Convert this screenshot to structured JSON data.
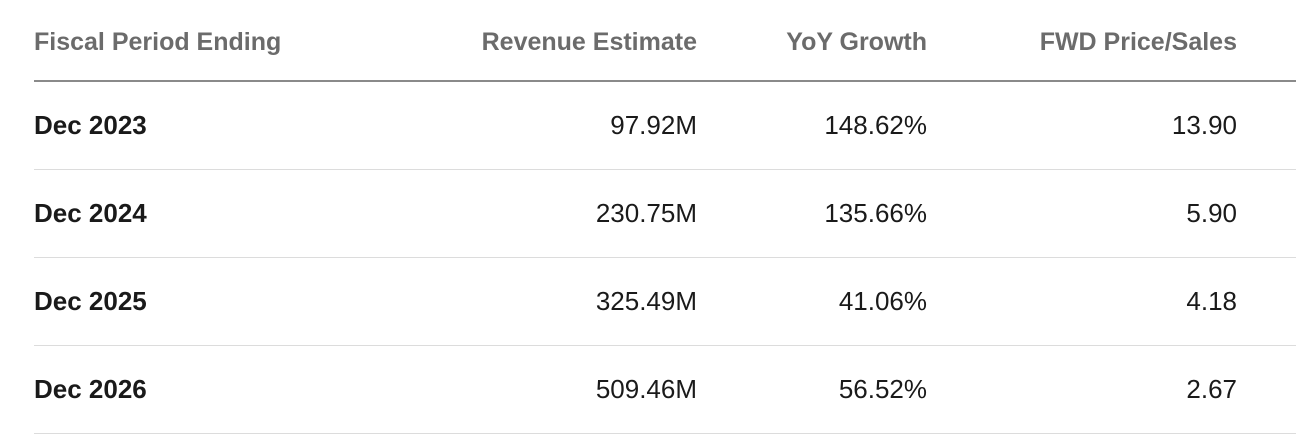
{
  "table": {
    "headers": {
      "period": "Fiscal Period Ending",
      "revenue": "Revenue Estimate",
      "growth": "YoY Growth",
      "price_sales": "FWD Price/Sales"
    },
    "rows": [
      {
        "period": "Dec 2023",
        "revenue": "97.92M",
        "growth": "148.62%",
        "price_sales": "13.90"
      },
      {
        "period": "Dec 2024",
        "revenue": "230.75M",
        "growth": "135.66%",
        "price_sales": "5.90"
      },
      {
        "period": "Dec 2025",
        "revenue": "325.49M",
        "growth": "41.06%",
        "price_sales": "4.18"
      },
      {
        "period": "Dec 2026",
        "revenue": "509.46M",
        "growth": "56.52%",
        "price_sales": "2.67"
      }
    ]
  }
}
